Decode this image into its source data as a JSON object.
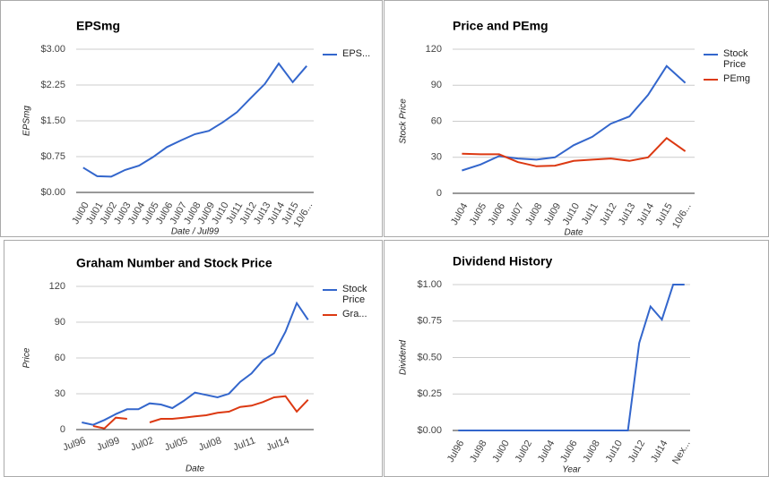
{
  "chart_data": [
    {
      "type": "line",
      "title": "EPSmg",
      "y_label": "EPSmg",
      "x_label": "Date / Jul99",
      "categories": [
        "Jul00",
        "Jul01",
        "Jul02",
        "Jul03",
        "Jul04",
        "Jul05",
        "Jul06",
        "Jul07",
        "Jul08",
        "Jul09",
        "Jul10",
        "Jul11",
        "Jul12",
        "Jul13",
        "Jul14",
        "Jul15",
        "10/6..."
      ],
      "series": [
        {
          "name": "EPS...",
          "color": "#3366cc",
          "values": [
            0.52,
            0.34,
            0.33,
            0.47,
            0.56,
            0.74,
            0.95,
            1.09,
            1.22,
            1.29,
            1.47,
            1.68,
            1.98,
            2.27,
            2.7,
            2.31,
            2.65
          ]
        }
      ],
      "ylim": [
        0,
        3
      ],
      "yticks": [
        {
          "value": 0,
          "label": "$0.00"
        },
        {
          "value": 0.75,
          "label": "$0.75"
        },
        {
          "value": 1.5,
          "label": "$1.50"
        },
        {
          "value": 2.25,
          "label": "$2.25"
        },
        {
          "value": 3,
          "label": "$3.00"
        }
      ],
      "grid": true
    },
    {
      "type": "line",
      "title": "Price and PEmg",
      "y_label": "Stock Price",
      "x_label": "Date",
      "categories": [
        "Jul04",
        "Jul05",
        "Jul06",
        "Jul07",
        "Jul08",
        "Jul09",
        "Jul10",
        "Jul11",
        "Jul12",
        "Jul13",
        "Jul14",
        "Jul15",
        "10/6..."
      ],
      "series": [
        {
          "name": "Stock Price",
          "color": "#3366cc",
          "values": [
            19,
            24,
            31,
            29,
            28,
            30,
            40,
            47,
            58,
            64,
            82,
            106,
            92
          ]
        },
        {
          "name": "PEmg",
          "color": "#dc3912",
          "values": [
            33,
            32.5,
            32.5,
            26,
            22.5,
            23,
            27,
            28,
            29,
            27,
            30,
            46,
            35
          ]
        }
      ],
      "ylim": [
        0,
        120
      ],
      "yticks": [
        0,
        30,
        60,
        90,
        120
      ],
      "grid": true
    },
    {
      "type": "line",
      "title": "Graham Number and Stock Price",
      "y_label": "Price",
      "x_label": "Date",
      "categories": [
        "Jul96",
        null,
        null,
        "Jul99",
        null,
        null,
        "Jul02",
        null,
        null,
        "Jul05",
        null,
        null,
        "Jul08",
        null,
        null,
        "Jul11",
        null,
        null,
        "Jul14",
        null,
        null
      ],
      "series": [
        {
          "name": "Stock Price",
          "color": "#3366cc",
          "values": [
            6,
            4,
            8,
            13,
            17,
            17,
            22,
            21,
            18,
            24,
            31,
            29,
            27,
            30,
            40,
            47,
            58,
            64,
            82,
            106,
            92
          ]
        },
        {
          "name": "Gra...",
          "color": "#dc3912",
          "values": [
            null,
            3,
            1,
            10,
            9,
            null,
            6,
            9,
            9,
            10,
            11,
            12,
            14,
            15,
            19,
            20,
            23,
            27,
            28,
            15,
            25
          ]
        }
      ],
      "ylim": [
        0,
        120
      ],
      "yticks": [
        0,
        30,
        60,
        90,
        120
      ],
      "grid": true
    },
    {
      "type": "line",
      "title": "Dividend History",
      "y_label": "Dividend",
      "x_label": "Year",
      "categories": [
        "Jul96",
        null,
        "Jul98",
        null,
        "Jul00",
        null,
        "Jul02",
        null,
        "Jul04",
        null,
        "Jul06",
        null,
        "Jul08",
        null,
        "Jul10",
        null,
        "Jul12",
        null,
        "Jul14",
        null,
        "Nex..."
      ],
      "series": [
        {
          "color": "#3366cc",
          "values": [
            0,
            0,
            0,
            0,
            0,
            0,
            0,
            0,
            0,
            0,
            0,
            0,
            0,
            0,
            0,
            0,
            0.6,
            0.85,
            0.76,
            1.0,
            1.0
          ]
        }
      ],
      "ylim": [
        0,
        1
      ],
      "yticks": [
        {
          "value": 0,
          "label": "$0.00"
        },
        {
          "value": 0.25,
          "label": "$0.25"
        },
        {
          "value": 0.5,
          "label": "$0.50"
        },
        {
          "value": 0.75,
          "label": "$0.75"
        },
        {
          "value": 1,
          "label": "$1.00"
        }
      ],
      "grid": true
    }
  ]
}
